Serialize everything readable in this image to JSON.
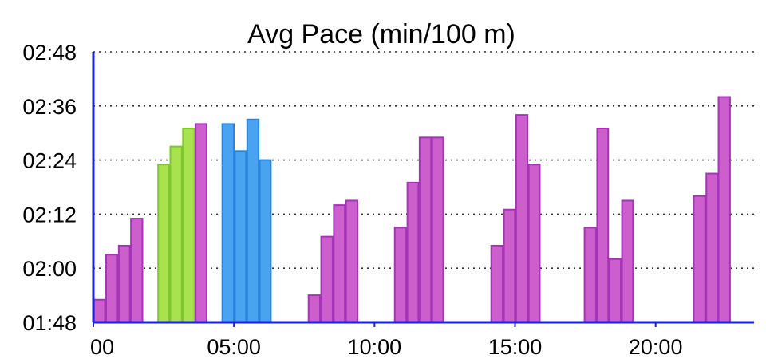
{
  "chart_data": {
    "type": "bar",
    "title": "Avg Pace (min/100 m)",
    "xlabel": "",
    "ylabel": "",
    "x_unit": "elapsed time (mm:ss)",
    "y_unit": "pace (mm:ss per 100 m)",
    "y_ticks": [
      "01:48",
      "02:00",
      "02:12",
      "02:24",
      "02:36",
      "02:48"
    ],
    "x_ticks": [
      "00",
      "05:00",
      "10:00",
      "15:00",
      "20:00"
    ],
    "ylim": [
      "01:48",
      "02:48"
    ],
    "xlim": [
      "00:00",
      "23:30"
    ],
    "grid": true,
    "colors": {
      "swim": "#cc5fcc",
      "swim_border": "#a634b8",
      "warmup": "#a8e34f",
      "warmup_border": "#7fc72c",
      "drill": "#4aa3f0",
      "drill_border": "#2a86dc",
      "axis": "#1a23d6"
    },
    "bars": [
      {
        "start": "00:00",
        "end": "00:26",
        "pace": "01:53",
        "kind": "swim"
      },
      {
        "start": "00:26",
        "end": "00:53",
        "pace": "02:03",
        "kind": "swim"
      },
      {
        "start": "00:53",
        "end": "01:19",
        "pace": "02:05",
        "kind": "swim"
      },
      {
        "start": "01:19",
        "end": "01:46",
        "pace": "02:11",
        "kind": "swim"
      },
      {
        "start": "02:17",
        "end": "02:43",
        "pace": "02:23",
        "kind": "warmup"
      },
      {
        "start": "02:43",
        "end": "03:10",
        "pace": "02:27",
        "kind": "warmup"
      },
      {
        "start": "03:10",
        "end": "03:37",
        "pace": "02:31",
        "kind": "warmup"
      },
      {
        "start": "03:37",
        "end": "04:03",
        "pace": "02:32",
        "kind": "swim"
      },
      {
        "start": "04:34",
        "end": "05:01",
        "pace": "02:32",
        "kind": "drill"
      },
      {
        "start": "05:01",
        "end": "05:27",
        "pace": "02:26",
        "kind": "drill"
      },
      {
        "start": "05:27",
        "end": "05:54",
        "pace": "02:33",
        "kind": "drill"
      },
      {
        "start": "05:54",
        "end": "06:20",
        "pace": "02:24",
        "kind": "drill"
      },
      {
        "start": "07:38",
        "end": "08:05",
        "pace": "01:54",
        "kind": "swim"
      },
      {
        "start": "08:05",
        "end": "08:32",
        "pace": "02:07",
        "kind": "swim"
      },
      {
        "start": "08:32",
        "end": "08:58",
        "pace": "02:14",
        "kind": "swim"
      },
      {
        "start": "08:58",
        "end": "09:25",
        "pace": "02:15",
        "kind": "swim"
      },
      {
        "start": "10:42",
        "end": "11:09",
        "pace": "02:09",
        "kind": "swim"
      },
      {
        "start": "11:09",
        "end": "11:35",
        "pace": "02:19",
        "kind": "swim"
      },
      {
        "start": "11:35",
        "end": "12:02",
        "pace": "02:29",
        "kind": "swim"
      },
      {
        "start": "12:02",
        "end": "12:28",
        "pace": "02:29",
        "kind": "swim"
      },
      {
        "start": "14:08",
        "end": "14:35",
        "pace": "02:05",
        "kind": "swim"
      },
      {
        "start": "14:35",
        "end": "15:01",
        "pace": "02:13",
        "kind": "swim"
      },
      {
        "start": "15:01",
        "end": "15:28",
        "pace": "02:34",
        "kind": "swim"
      },
      {
        "start": "15:28",
        "end": "15:54",
        "pace": "02:23",
        "kind": "swim"
      },
      {
        "start": "17:27",
        "end": "17:54",
        "pace": "02:09",
        "kind": "swim"
      },
      {
        "start": "17:54",
        "end": "18:20",
        "pace": "02:31",
        "kind": "swim"
      },
      {
        "start": "18:20",
        "end": "18:47",
        "pace": "02:02",
        "kind": "swim"
      },
      {
        "start": "18:47",
        "end": "19:13",
        "pace": "02:15",
        "kind": "swim"
      },
      {
        "start": "21:20",
        "end": "21:47",
        "pace": "02:16",
        "kind": "swim"
      },
      {
        "start": "21:47",
        "end": "22:13",
        "pace": "02:21",
        "kind": "swim"
      },
      {
        "start": "22:13",
        "end": "22:40",
        "pace": "02:38",
        "kind": "swim"
      }
    ]
  }
}
